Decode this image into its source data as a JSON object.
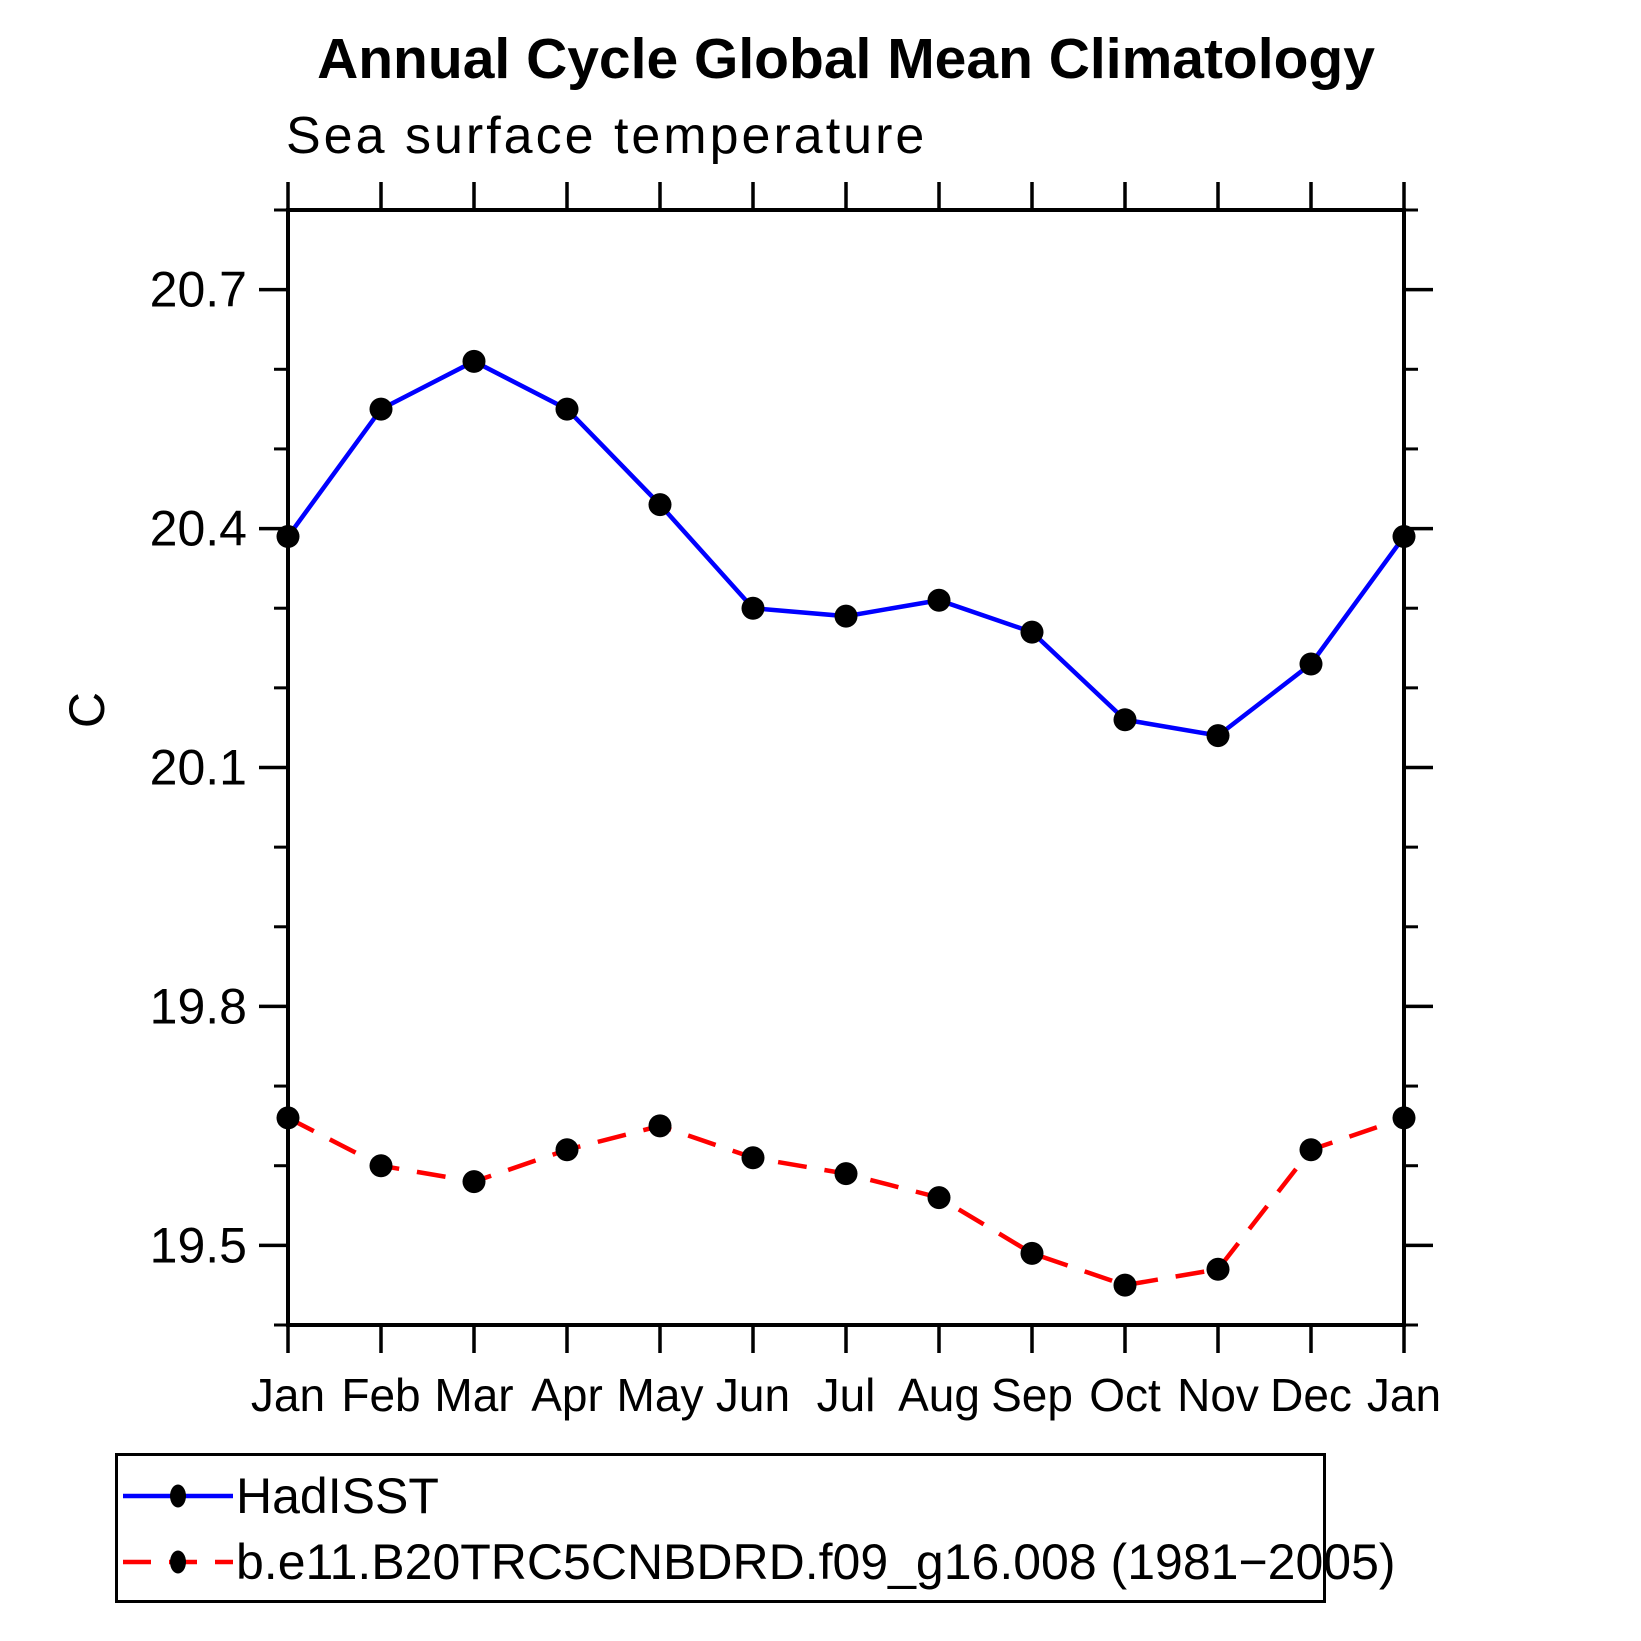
{
  "title": "Annual Cycle Global Mean Climatology",
  "subtitle": "Sea surface temperature",
  "y_axis_label": "C",
  "colors": {
    "hadisst_line": "#0000ff",
    "model_line": "#ff0000",
    "marker": "#000000",
    "axis": "#000000",
    "background": "#ffffff"
  },
  "legend": {
    "position": "bottom-left-outside",
    "items": [
      {
        "label": "HadISST",
        "line_style": "solid",
        "color": "#0000ff",
        "marker": "filled-circle",
        "marker_color": "#000000"
      },
      {
        "label": "b.e11.B20TRC5CNBDRD.f09_g16.008 (1981−2005)",
        "line_style": "dashed",
        "color": "#ff0000",
        "marker": "filled-circle",
        "marker_color": "#000000"
      }
    ]
  },
  "chart_data": {
    "type": "line",
    "title": "Annual Cycle Global Mean Climatology",
    "subtitle": "Sea surface temperature",
    "xlabel": "",
    "ylabel": "C",
    "categories": [
      "Jan",
      "Feb",
      "Mar",
      "Apr",
      "May",
      "Jun",
      "Jul",
      "Aug",
      "Sep",
      "Oct",
      "Nov",
      "Dec",
      "Jan"
    ],
    "series": [
      {
        "name": "HadISST",
        "color": "#0000ff",
        "line_style": "solid",
        "marker": "filled-circle",
        "marker_color": "#000000",
        "values": [
          20.39,
          20.55,
          20.61,
          20.55,
          20.43,
          20.3,
          20.29,
          20.31,
          20.27,
          20.16,
          20.14,
          20.23,
          20.39
        ]
      },
      {
        "name": "b.e11.B20TRC5CNBDRD.f09_g16.008 (1981−2005)",
        "color": "#ff0000",
        "line_style": "dashed",
        "marker": "filled-circle",
        "marker_color": "#000000",
        "values": [
          19.66,
          19.6,
          19.58,
          19.62,
          19.65,
          19.61,
          19.59,
          19.56,
          19.49,
          19.45,
          19.47,
          19.62,
          19.66
        ]
      }
    ],
    "ylim": [
      19.4,
      20.8
    ],
    "yticks_major": [
      19.5,
      19.8,
      20.1,
      20.4,
      20.7
    ],
    "ytick_minor_step": 0.1,
    "x_ticks_on_each_category": true,
    "grid": false,
    "frame": "full-box-with-outward-ticks",
    "legend_position": "bottom-left"
  }
}
